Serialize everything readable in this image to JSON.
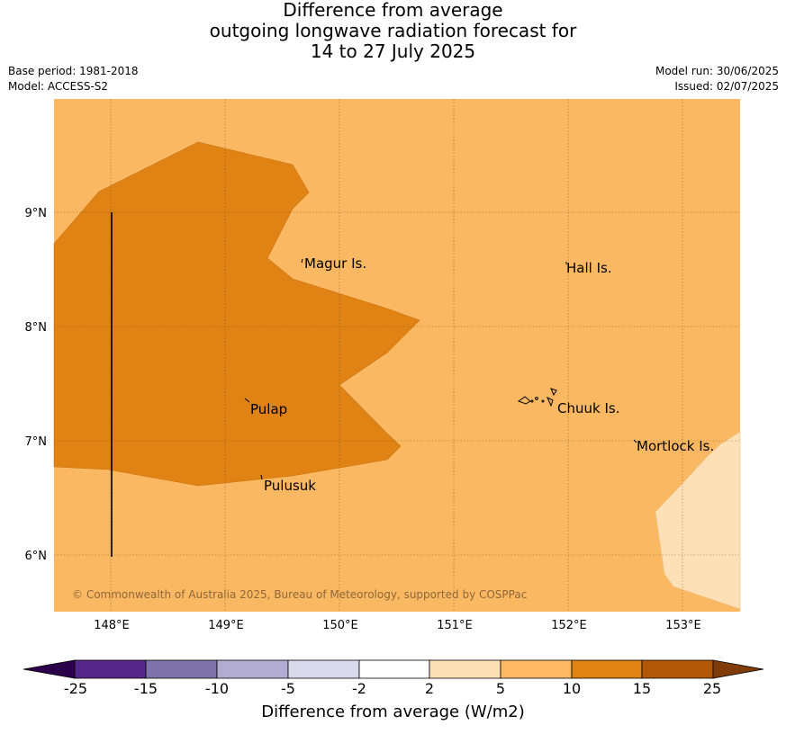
{
  "title": {
    "line1": "Difference from average",
    "line2": "outgoing longwave radiation forecast for",
    "line3": "14 to 27 July 2025"
  },
  "meta": {
    "base_period": "Base period: 1981-2018",
    "model": "Model: ACCESS-S2",
    "model_run": "Model run: 30/06/2025",
    "issued": "Issued: 02/07/2025"
  },
  "map": {
    "lat_labels": [
      "9°N",
      "8°N",
      "7°N",
      "6°N"
    ],
    "lon_labels": [
      "148°E",
      "149°E",
      "150°E",
      "151°E",
      "152°E",
      "153°E"
    ],
    "places": [
      "Magur Is.",
      "Hall Is.",
      "Pulap",
      "Chuuk Is.",
      "Mortlock Is.",
      "Pulusuk"
    ],
    "copyright": "© Commonwealth of Australia 2025, Bureau of Meteorology, supported by COSPPac",
    "colors": {
      "background_5_10": "#fbb862",
      "range_10_15": "#e08214",
      "range_2_5": "#fee0b6"
    }
  },
  "colorbar": {
    "label": "Difference from average (W/m2)",
    "ticks": [
      "-25",
      "-15",
      "-10",
      "-5",
      "-2",
      "2",
      "5",
      "10",
      "15",
      "25"
    ],
    "colors": [
      "#2d004b",
      "#542788",
      "#8073ac",
      "#b2abd2",
      "#d8daeb",
      "#ffffff",
      "#fee0b6",
      "#fdb863",
      "#e08214",
      "#b35806",
      "#7f3b08"
    ]
  }
}
